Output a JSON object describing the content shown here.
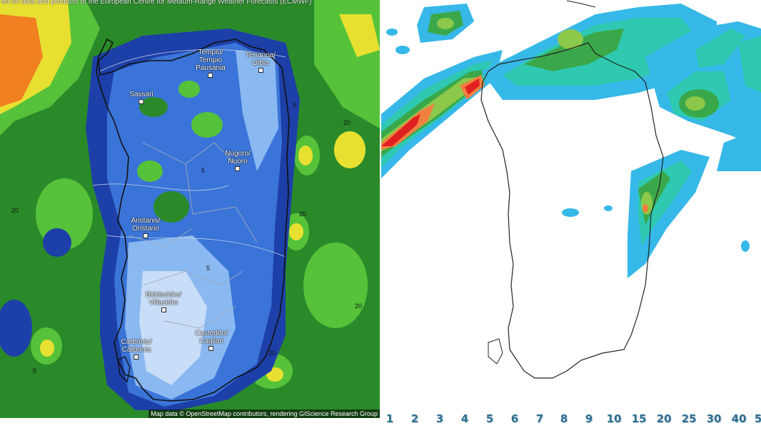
{
  "left_map": {
    "top_credit": "ed on data and products of the European Centre for Medium-Range Weather Forecasts (ECMWF)",
    "bottom_credit": "Map data © OpenStreetMap contributors, rendering GIScience Research Group",
    "cities": [
      {
        "id": "tempio",
        "label": "Tempiu/\nTempio\nPausania"
      },
      {
        "id": "olbia",
        "label": "Terranoa/\nOlbia"
      },
      {
        "id": "sassari",
        "label": "Sassari"
      },
      {
        "id": "nuoro",
        "label": "Nùgoro/\nNuoro"
      },
      {
        "id": "oristano",
        "label": "Aristanis/\nOristano"
      },
      {
        "id": "villacidro",
        "label": "Biddacidru/\nVillacidro"
      },
      {
        "id": "carbonia",
        "label": "Carbònia/\nCarbonia"
      },
      {
        "id": "cagliari",
        "label": "Casteddu/\nCagliari"
      }
    ],
    "contour_labels": [
      "20",
      "20",
      "20",
      "20",
      "20",
      "5",
      "5",
      "5",
      "5"
    ],
    "colors": {
      "green": "#2a8a2a",
      "light_green": "#56c23a",
      "yellow": "#e8e030",
      "orange": "#f08020",
      "deep_blue": "#1d3fa8",
      "mid_blue": "#3a74d8",
      "light_blue": "#8ab8f0"
    }
  },
  "right_map": {
    "colors": {
      "cyan": "#36b8e8",
      "teal": "#2ec9b0",
      "green": "#3aa84a",
      "light_green": "#8cc84a",
      "orange": "#f08040",
      "red": "#e02020"
    }
  },
  "scale": {
    "labels": [
      "1",
      "2",
      "3",
      "4",
      "5",
      "6",
      "7",
      "8",
      "9",
      "10",
      "15",
      "20",
      "25",
      "30",
      "40",
      "5"
    ]
  }
}
